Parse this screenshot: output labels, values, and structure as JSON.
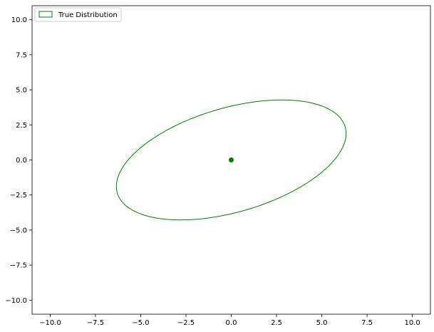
{
  "chart_data": {
    "type": "scatter",
    "title": "",
    "xlabel": "",
    "ylabel": "",
    "xlim": [
      -11,
      11
    ],
    "ylim": [
      -11,
      11
    ],
    "xticks": [
      -10.0,
      -7.5,
      -5.0,
      -2.5,
      0.0,
      2.5,
      5.0,
      7.5,
      10.0
    ],
    "yticks": [
      -10.0,
      -7.5,
      -5.0,
      -2.5,
      0.0,
      2.5,
      5.0,
      7.5,
      10.0
    ],
    "xtick_labels": [
      "−10.0",
      "−7.5",
      "−5.0",
      "−2.5",
      "0.0",
      "2.5",
      "5.0",
      "7.5",
      "10.0"
    ],
    "ytick_labels": [
      "−10.0",
      "−7.5",
      "−5.0",
      "−2.5",
      "0.0",
      "2.5",
      "5.0",
      "7.5",
      "10.0"
    ],
    "grid": false,
    "legend": {
      "position": "top-left",
      "entries": [
        "True Distribution"
      ]
    },
    "color": "#008000",
    "points": [
      {
        "x": 0.0,
        "y": 0.0
      }
    ],
    "ellipse": {
      "label": "True Distribution",
      "center": [
        0.0,
        0.0
      ],
      "rightmost": [
        6.35,
        1.85
      ],
      "topmost": [
        2.65,
        4.5
      ],
      "leftmost": [
        -6.35,
        -1.85
      ],
      "bottommost": [
        -2.65,
        -4.5
      ]
    }
  }
}
